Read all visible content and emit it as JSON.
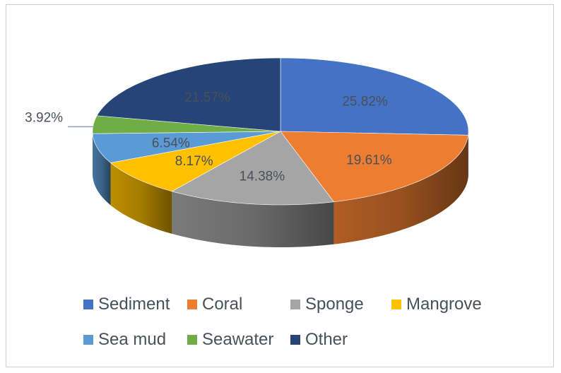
{
  "chart_data": {
    "type": "pie",
    "style": "3d",
    "title": "",
    "slices": [
      {
        "label": "Sediment",
        "value": 25.82,
        "display": "25.82%",
        "color": "#4472C4"
      },
      {
        "label": "Coral",
        "value": 19.61,
        "display": "19.61%",
        "color": "#ED7D31"
      },
      {
        "label": "Sponge",
        "value": 14.38,
        "display": "14.38%",
        "color": "#A5A5A5"
      },
      {
        "label": "Mangrove",
        "value": 8.17,
        "display": "8.17%",
        "color": "#FFC000"
      },
      {
        "label": "Sea mud",
        "value": 6.54,
        "display": "6.54%",
        "color": "#5B9BD5"
      },
      {
        "label": "Seawater",
        "value": 3.92,
        "display": "3.92%",
        "color": "#70AD47"
      },
      {
        "label": "Other",
        "value": 21.57,
        "display": "21.57%",
        "color": "#264478"
      }
    ],
    "legend_position": "bottom"
  }
}
